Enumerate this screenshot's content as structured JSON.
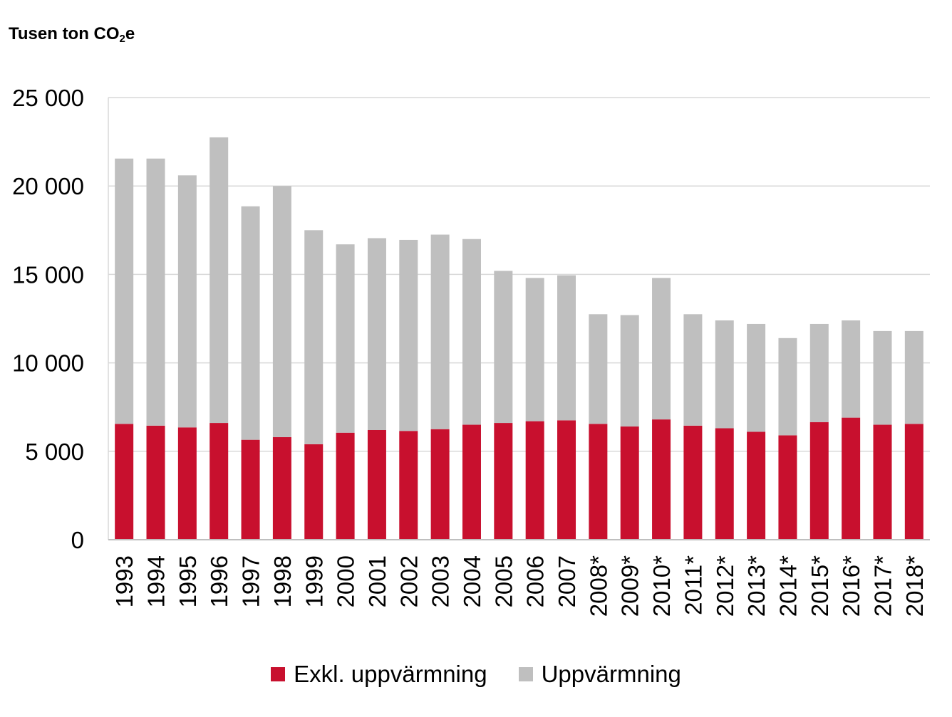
{
  "chart_data": {
    "type": "bar",
    "stacked": true,
    "ylabel_main": "Tusen ton CO",
    "ylabel_sub": "2",
    "ylabel_tail": "e",
    "categories": [
      "1993",
      "1994",
      "1995",
      "1996",
      "1997",
      "1998",
      "1999",
      "2000",
      "2001",
      "2002",
      "2003",
      "2004",
      "2005",
      "2006",
      "2007",
      "2008*",
      "2009*",
      "2010*",
      "2011*",
      "2012*",
      "2013*",
      "2014*",
      "2015*",
      "2016*",
      "2017*",
      "2018*"
    ],
    "series": [
      {
        "name": "Exkl. uppvärmning",
        "color": "#c8102e",
        "values": [
          6550,
          6450,
          6350,
          6600,
          5650,
          5800,
          5400,
          6050,
          6200,
          6150,
          6250,
          6500,
          6600,
          6700,
          6750,
          6550,
          6400,
          6800,
          6450,
          6300,
          6100,
          5900,
          6650,
          6900,
          6500,
          6550
        ]
      },
      {
        "name": "Uppvärmning",
        "color": "#bfbfbf",
        "values": [
          15000,
          15100,
          14250,
          16150,
          13200,
          14200,
          12100,
          10650,
          10850,
          10800,
          11000,
          10500,
          8600,
          8100,
          8200,
          6200,
          6300,
          8000,
          6300,
          6100,
          6100,
          5500,
          5550,
          5500,
          5300,
          5250
        ]
      }
    ],
    "yticks": [
      0,
      5000,
      10000,
      15000,
      20000,
      25000
    ],
    "ytick_labels": [
      "0",
      "5 000",
      "10 000",
      "15 000",
      "20 000",
      "25 000"
    ],
    "ylim": [
      0,
      25000
    ],
    "grid": true,
    "legend_position": "bottom"
  }
}
